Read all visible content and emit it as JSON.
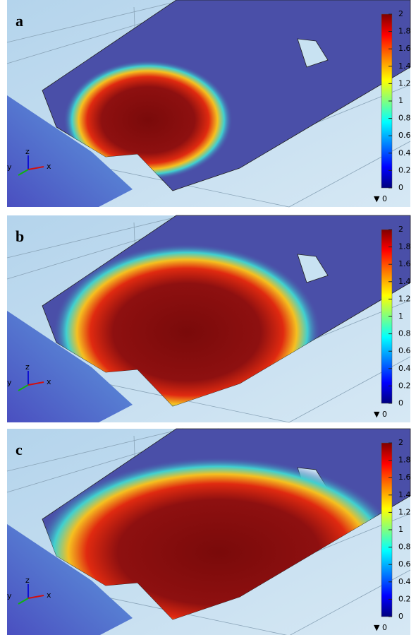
{
  "panels": [
    {
      "label": "a",
      "colorbar": {
        "ticks": [
          0,
          0.2,
          0.4,
          0.6,
          0.8,
          1,
          1.2,
          1.4,
          1.6,
          1.8,
          2
        ],
        "min_marker": "▼ 0"
      },
      "axes": {
        "z": "z",
        "y": "y",
        "x": "x"
      }
    },
    {
      "label": "b",
      "colorbar": {
        "ticks": [
          0,
          0.2,
          0.4,
          0.6,
          0.8,
          1,
          1.2,
          1.4,
          1.6,
          1.8,
          2
        ],
        "min_marker": "▼ 0"
      },
      "axes": {
        "z": "z",
        "y": "y",
        "x": "x"
      }
    },
    {
      "label": "c",
      "colorbar": {
        "ticks": [
          0,
          0.2,
          0.4,
          0.6,
          0.8,
          1,
          1.2,
          1.4,
          1.6,
          1.8,
          2
        ],
        "min_marker": "▼ 0"
      },
      "axes": {
        "z": "z",
        "y": "y",
        "x": "x"
      }
    }
  ]
}
